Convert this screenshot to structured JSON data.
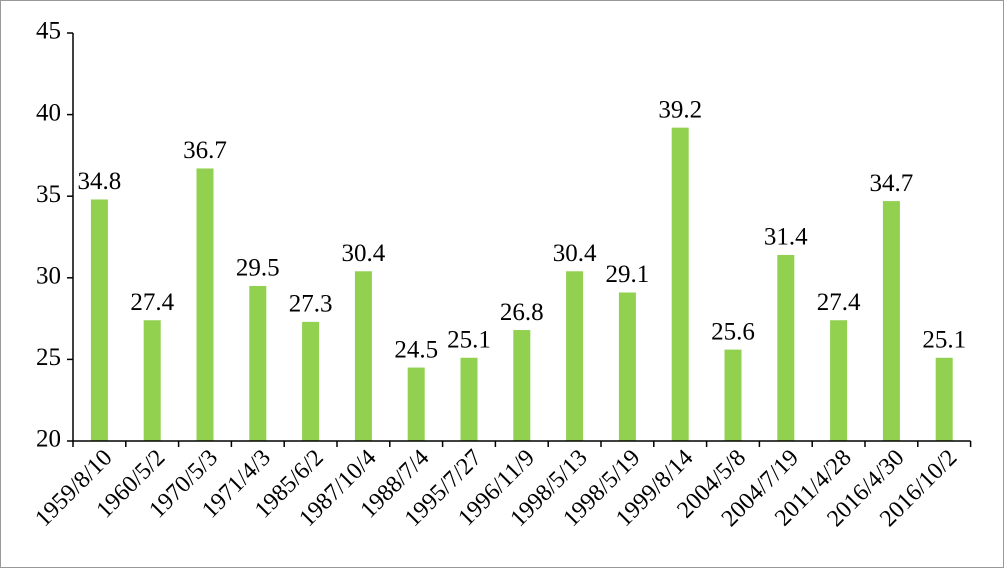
{
  "chart_data": {
    "type": "bar",
    "categories": [
      "1959/8/10",
      "1960/5/2",
      "1970/5/3",
      "1971/4/3",
      "1985/6/2",
      "1987/10/4",
      "1988/7/4",
      "1995/7/27",
      "1996/11/9",
      "1998/5/13",
      "1998/5/19",
      "1999/8/14",
      "2004/5/8",
      "2004/7/19",
      "2011/4/28",
      "2016/4/30",
      "2016/10/2"
    ],
    "values": [
      34.8,
      27.4,
      36.7,
      29.5,
      27.3,
      30.4,
      24.5,
      25.1,
      26.8,
      30.4,
      29.1,
      39.2,
      25.6,
      31.4,
      27.4,
      34.7,
      25.1
    ],
    "color": "#92d050",
    "ylim": [
      20,
      45
    ],
    "yticks": [
      20,
      25,
      30,
      35,
      40,
      45
    ],
    "grid": false
  }
}
